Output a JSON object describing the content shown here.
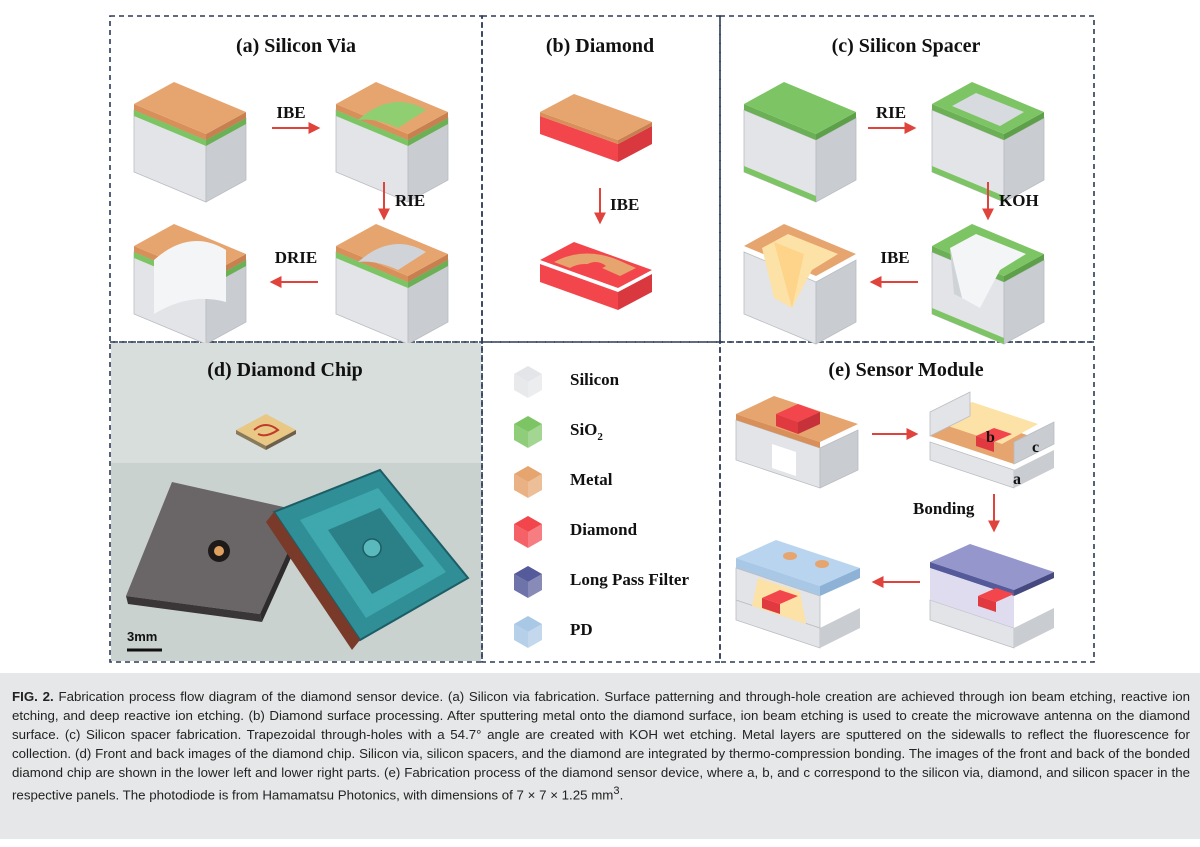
{
  "panels": {
    "a": {
      "title": "(a) Silicon Via",
      "steps": [
        "IBE",
        "RIE",
        "DRIE"
      ]
    },
    "b": {
      "title": "(b) Diamond",
      "steps": [
        "IBE"
      ]
    },
    "c": {
      "title": "(c) Silicon Spacer",
      "steps": [
        "RIE",
        "KOH",
        "IBE"
      ]
    },
    "d": {
      "title": "(d) Diamond Chip",
      "scale_bar": "3mm"
    },
    "e": {
      "title": "(e) Sensor Module",
      "step": "Bonding",
      "labels": [
        "b",
        "c",
        "a"
      ]
    }
  },
  "legend": [
    {
      "label": "Silicon",
      "color": "#e3e5e8"
    },
    {
      "label": "SiO",
      "sub": "2",
      "color": "#7cc464"
    },
    {
      "label": "Metal",
      "color": "#e6a46e"
    },
    {
      "label": "Diamond",
      "color": "#f2464c"
    },
    {
      "label": "Long Pass Filter",
      "color": "#555a9a"
    },
    {
      "label": "PD",
      "color": "#a9c8e6"
    }
  ],
  "colors": {
    "silicon": "#e3e5e8",
    "sio2": "#7cc464",
    "metal": "#e6a46e",
    "diamond": "#f2464c",
    "filter": "#555a9a",
    "pd": "#a9c8e6",
    "arrow": "#e0433b",
    "border": "#2b3a57",
    "caption_bg": "#e6e7e8"
  },
  "caption": {
    "label": "FIG. 2.",
    "text": " Fabrication process flow diagram of the diamond sensor device. (a) Silicon via fabrication. Surface patterning and through-hole creation are achieved through ion beam etching, reactive ion etching, and deep reactive ion etching. (b) Diamond surface processing. After sputtering metal onto the diamond surface, ion beam etching is used to create the microwave antenna on the diamond surface. (c) Silicon spacer fabrication. Trapezoidal through-holes with a 54.7° angle are created with KOH wet etching. Metal layers are sputtered on the sidewalls to reflect the fluorescence for collection. (d) Front and back images of the diamond chip. Silicon via, silicon spacers, and the diamond are integrated by thermo-compression bonding. The images of the front and back of the bonded diamond chip are shown in the lower left and lower right parts. (e) Fabrication process of the diamond sensor device, where a, b, and c correspond to the silicon via, diamond, and silicon spacer in the respective panels. The photodiode is from Hamamatsu Photonics, with dimensions of 7 × 7 × 1.25 mm",
    "superscript": "3",
    "end": "."
  }
}
